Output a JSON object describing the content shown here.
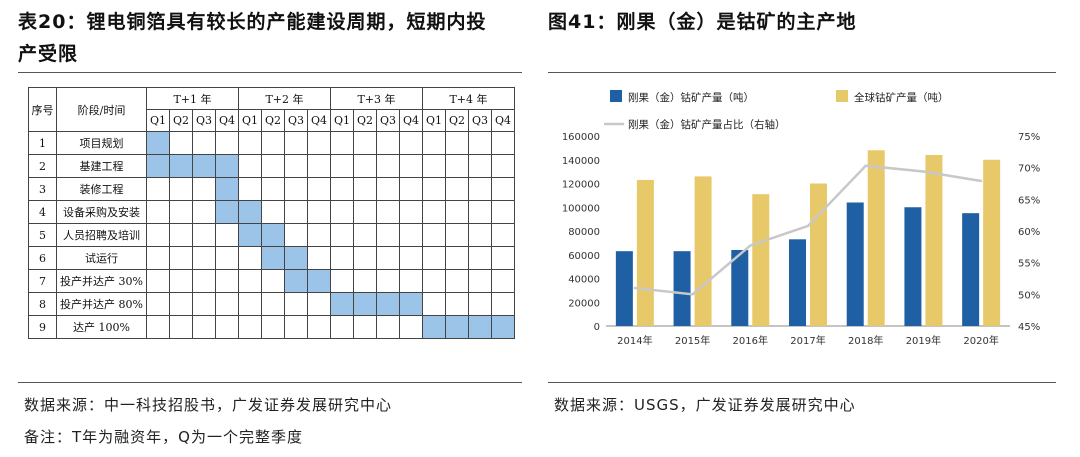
{
  "left": {
    "title_line1": "表20：锂电铜箔具有较长的产能建设周期，短期内投",
    "title_line2": "产受限",
    "table": {
      "header_no": "序号",
      "header_stage": "阶段/时间",
      "years": [
        "T+1 年",
        "T+2 年",
        "T+3 年",
        "T+4 年"
      ],
      "quarters": [
        "Q1",
        "Q2",
        "Q3",
        "Q4"
      ],
      "rows": [
        {
          "no": "1",
          "stage": "项目规划",
          "span": [
            0,
            0
          ]
        },
        {
          "no": "2",
          "stage": "基建工程",
          "span": [
            0,
            3
          ]
        },
        {
          "no": "3",
          "stage": "装修工程",
          "span": [
            3,
            3
          ]
        },
        {
          "no": "4",
          "stage": "设备采购及安装",
          "span": [
            3,
            4
          ]
        },
        {
          "no": "5",
          "stage": "人员招聘及培训",
          "span": [
            4,
            5
          ]
        },
        {
          "no": "6",
          "stage": "试运行",
          "span": [
            5,
            6
          ]
        },
        {
          "no": "7",
          "stage": "投产并达产 30%",
          "span": [
            6,
            7
          ]
        },
        {
          "no": "8",
          "stage": "投产并达产 80%",
          "span": [
            8,
            11
          ]
        },
        {
          "no": "9",
          "stage": "达产 100%",
          "span": [
            12,
            15
          ]
        }
      ]
    },
    "source": "数据来源：中一科技招股书，广发证券发展研究中心",
    "note": "备注：T年为融资年，Q为一个完整季度"
  },
  "right": {
    "title": "图41：刚果（金）是钴矿的主产地",
    "source": "数据来源：USGS，广发证券发展研究中心"
  },
  "colors": {
    "bar_blue": "#1f5fa3",
    "bar_gold": "#e8c96a",
    "line_gray": "#c8c8c8",
    "gantt_fill": "#9cc3e8"
  },
  "chart_data": {
    "type": "bar",
    "categories": [
      "2014年",
      "2015年",
      "2016年",
      "2017年",
      "2018年",
      "2019年",
      "2020年"
    ],
    "series": [
      {
        "name": "刚果（金）钴矿产量（吨）",
        "type": "bar",
        "axis": "left",
        "color": "#1f5fa3",
        "values": [
          63000,
          63000,
          64000,
          73000,
          104000,
          100000,
          95000
        ]
      },
      {
        "name": "全球钴矿产量（吨）",
        "type": "bar",
        "axis": "left",
        "color": "#e8c96a",
        "values": [
          123000,
          126000,
          111000,
          120000,
          148000,
          144000,
          140000
        ]
      },
      {
        "name": "刚果（金）钴矿产量占比（右轴）",
        "type": "line",
        "axis": "right",
        "color": "#c8c8c8",
        "values": [
          0.51,
          0.5,
          0.577,
          0.608,
          0.703,
          0.694,
          0.679
        ]
      }
    ],
    "left_axis": {
      "min": 0,
      "max": 160000,
      "step": 20000,
      "ticks": [
        "0",
        "20000",
        "40000",
        "60000",
        "80000",
        "100000",
        "120000",
        "140000",
        "160000"
      ]
    },
    "right_axis": {
      "min": 0.45,
      "max": 0.75,
      "step": 0.05,
      "ticks": [
        "45%",
        "50%",
        "55%",
        "60%",
        "65%",
        "70%",
        "75%"
      ]
    },
    "legend_position": "top",
    "grid": false
  }
}
